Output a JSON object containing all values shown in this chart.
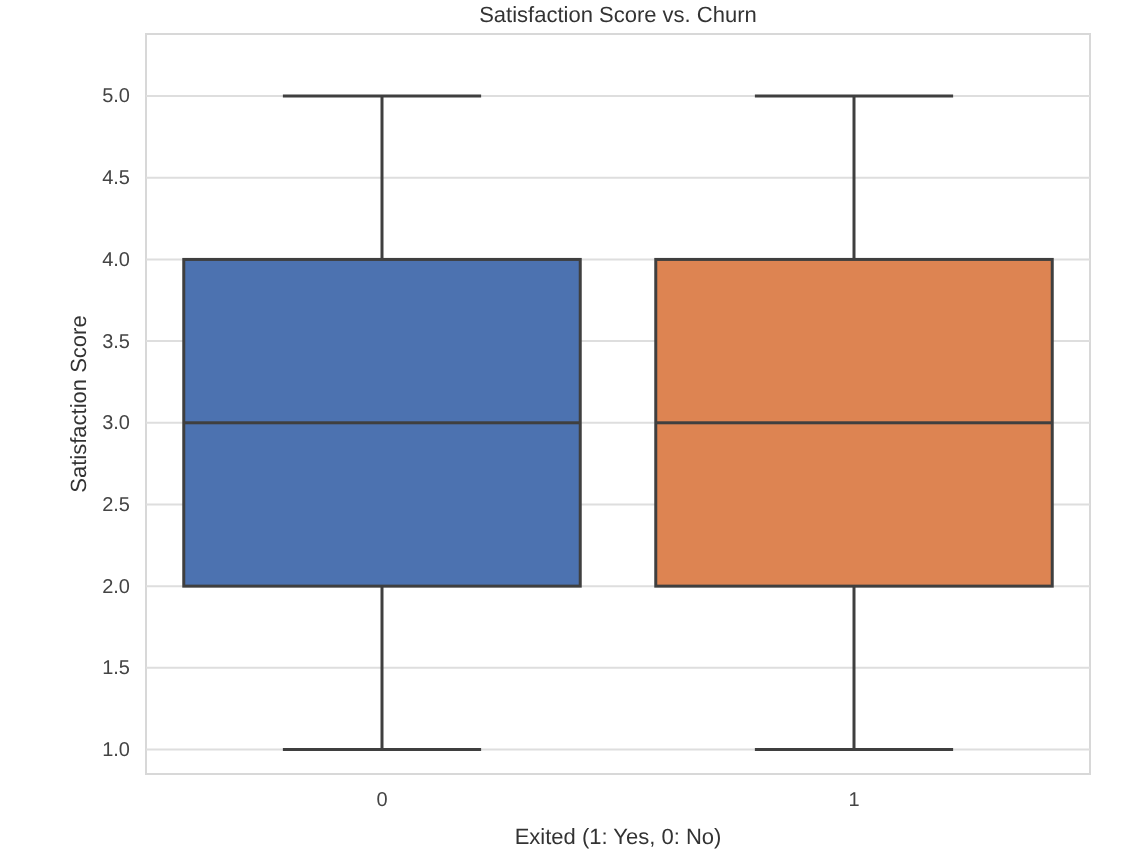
{
  "chart_data": {
    "type": "box",
    "title": "Satisfaction Score vs. Churn",
    "xlabel": "Exited (1: Yes, 0: No)",
    "ylabel": "Satisfaction Score",
    "categories": [
      "0",
      "1"
    ],
    "colors": [
      "#4c72b0",
      "#dd8452"
    ],
    "boxes": [
      {
        "low": 1.0,
        "q1": 2.0,
        "median": 3.0,
        "q3": 4.0,
        "high": 5.0
      },
      {
        "low": 1.0,
        "q1": 2.0,
        "median": 3.0,
        "q3": 4.0,
        "high": 5.0
      }
    ],
    "ylim": [
      0.85,
      5.38
    ],
    "yticks": [
      {
        "value": 1,
        "label": "1.0"
      },
      {
        "value": 1.5,
        "label": "1.5"
      },
      {
        "value": 2,
        "label": "2.0"
      },
      {
        "value": 2.5,
        "label": "2.5"
      },
      {
        "value": 3,
        "label": "3.0"
      },
      {
        "value": 3.5,
        "label": "3.5"
      },
      {
        "value": 4,
        "label": "4.0"
      },
      {
        "value": 4.5,
        "label": "4.5"
      },
      {
        "value": 5,
        "label": "5.0"
      }
    ],
    "grid": "y"
  }
}
